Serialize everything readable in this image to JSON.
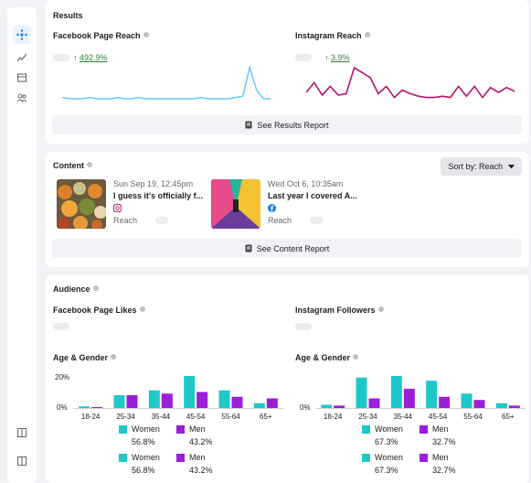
{
  "colors": {
    "fb_line": "#5ac8fa",
    "ig_line": "#b5136d",
    "women": "#1ec8c8",
    "men": "#9b1ed8",
    "gain": "#2e7d32"
  },
  "sidebar": {
    "icons": [
      "overview-icon",
      "trends-icon",
      "content-icon",
      "audience-icon"
    ],
    "bottom_icons": [
      "panel-toggle-icon",
      "panel-toggle-icon"
    ]
  },
  "results": {
    "title": "Results",
    "facebook": {
      "label": "Facebook Page Reach",
      "change": "492.9%"
    },
    "instagram": {
      "label": "Instagram Reach",
      "change": "3.9%"
    },
    "button": "See Results Report"
  },
  "content": {
    "title": "Content",
    "sort_label": "Sort by: Reach",
    "posts": [
      {
        "date": "Sun Sep 19, 12:45pm",
        "title": "I guess it's officially f...",
        "platform": "instagram-icon",
        "reach_label": "Reach"
      },
      {
        "date": "Wed Oct 6, 10:35am",
        "title": "Last year I covered A...",
        "platform": "facebook-icon",
        "reach_label": "Reach"
      }
    ],
    "button": "See Content Report"
  },
  "audience": {
    "title": "Audience",
    "fb_likes_label": "Facebook Page Likes",
    "ig_followers_label": "Instagram Followers",
    "fb_age_label": "Age & Gender",
    "ig_age_label": "Age & Gender",
    "y_ticks": [
      "20%",
      "0%"
    ],
    "fb_gender": {
      "women": "Women",
      "women_pct": "56.8%",
      "men": "Men",
      "men_pct": "43.2%"
    },
    "ig_gender": {
      "women": "Women",
      "women_pct": "67.3%",
      "men": "Men",
      "men_pct": "32.7%"
    }
  },
  "chart_data": [
    {
      "type": "line",
      "title": "Facebook Page Reach",
      "series": [
        {
          "values": [
            4,
            3,
            3,
            3,
            4,
            3,
            3,
            3,
            4,
            3,
            3,
            4,
            3,
            3,
            3,
            3,
            3,
            3,
            3,
            3,
            4,
            3,
            3,
            3,
            3,
            4,
            5,
            28,
            10,
            3,
            3
          ]
        }
      ]
    },
    {
      "type": "line",
      "title": "Instagram Reach",
      "series": [
        {
          "values": [
            8,
            16,
            6,
            13,
            6,
            7,
            28,
            24,
            20,
            7,
            13,
            4,
            10,
            7,
            5,
            4,
            4,
            5,
            4,
            13,
            5,
            13,
            4,
            12,
            8,
            12,
            9
          ]
        }
      ]
    },
    {
      "type": "bar",
      "title": "Age & Gender",
      "categories": [
        "18-24",
        "25-34",
        "35-44",
        "45-54",
        "55-64",
        "65+"
      ],
      "series": [
        {
          "name": "Women",
          "values": [
            1,
            8,
            11,
            20,
            11,
            3
          ]
        },
        {
          "name": "Men",
          "values": [
            0.5,
            8,
            9,
            10,
            7,
            6
          ]
        }
      ],
      "ylim": [
        0,
        20
      ]
    },
    {
      "type": "bar",
      "title": "Age & Gender",
      "categories": [
        "18-24",
        "25-34",
        "35-44",
        "45-54",
        "55-64",
        "65+"
      ],
      "series": [
        {
          "name": "Women",
          "values": [
            2,
            19,
            20,
            17,
            9,
            3
          ]
        },
        {
          "name": "Men",
          "values": [
            1.5,
            6,
            12,
            7,
            5,
            1.5
          ]
        }
      ],
      "ylim": [
        0,
        20
      ]
    }
  ]
}
